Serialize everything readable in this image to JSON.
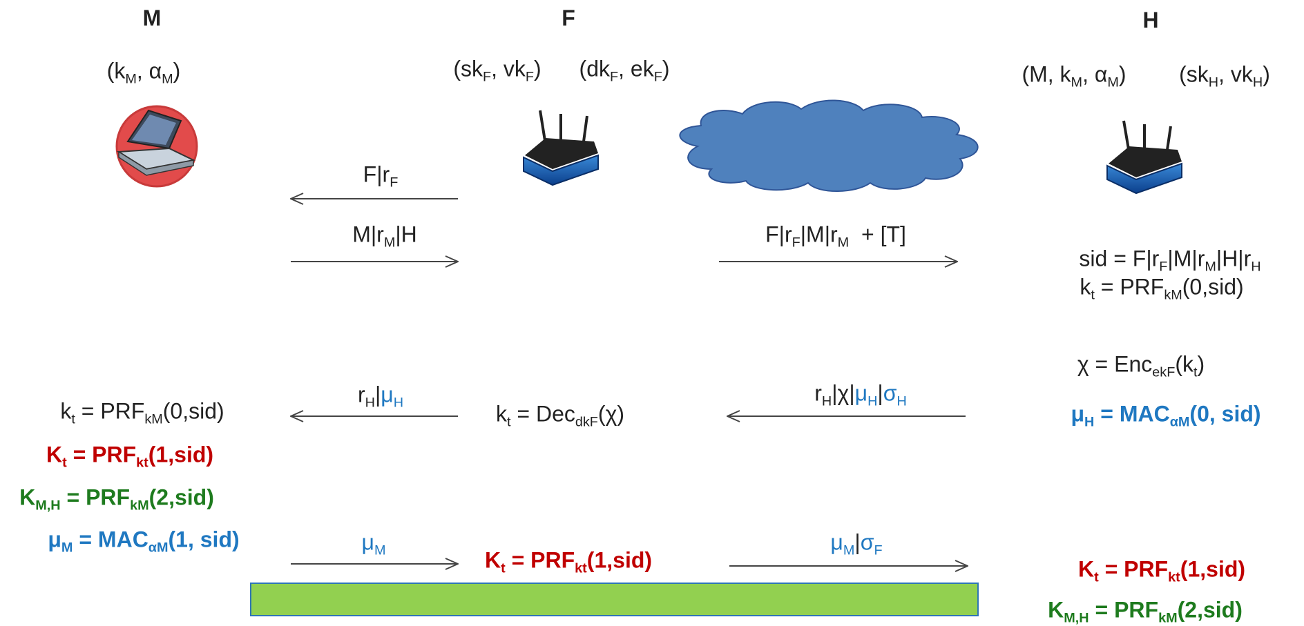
{
  "labels": [
    {
      "bold": true,
      "runs": [
        {
          "text": "M"
        }
      ]
    },
    {
      "bold": true,
      "runs": [
        {
          "text": "F"
        }
      ]
    },
    {
      "bold": true,
      "runs": [
        {
          "text": "H"
        }
      ]
    },
    {
      "runs": [
        {
          "text": "(k"
        },
        {
          "text": "M",
          "sub": true
        },
        {
          "text": ", α"
        },
        {
          "text": "M",
          "sub": true
        },
        {
          "text": ")"
        }
      ]
    },
    {
      "runs": [
        {
          "text": "(sk"
        },
        {
          "text": "F",
          "sub": true
        },
        {
          "text": ", vk"
        },
        {
          "text": "F",
          "sub": true
        },
        {
          "text": ")"
        }
      ]
    },
    {
      "runs": [
        {
          "text": "(dk"
        },
        {
          "text": "F",
          "sub": true
        },
        {
          "text": ", ek"
        },
        {
          "text": "F",
          "sub": true
        },
        {
          "text": ")"
        }
      ]
    },
    {
      "runs": [
        {
          "text": "(M, k"
        },
        {
          "text": "M",
          "sub": true
        },
        {
          "text": ", α"
        },
        {
          "text": "M",
          "sub": true
        },
        {
          "text": ")"
        }
      ]
    },
    {
      "runs": [
        {
          "text": "(sk"
        },
        {
          "text": "H",
          "sub": true
        },
        {
          "text": ", vk"
        },
        {
          "text": "H",
          "sub": true
        },
        {
          "text": ")"
        }
      ]
    },
    {
      "runs": [
        {
          "text": "F|r"
        },
        {
          "text": "F",
          "sub": true
        }
      ]
    },
    {
      "runs": [
        {
          "text": "M|r"
        },
        {
          "text": "M",
          "sub": true
        },
        {
          "text": "|H"
        }
      ]
    },
    {
      "runs": [
        {
          "text": "F|r"
        },
        {
          "text": "F",
          "sub": true
        },
        {
          "text": "|M|r"
        },
        {
          "text": "M",
          "sub": true
        },
        {
          "text": "  + [T]"
        }
      ]
    },
    {
      "runs": [
        {
          "text": "sid = F|r"
        },
        {
          "text": "F",
          "sub": true
        },
        {
          "text": "|M|r"
        },
        {
          "text": "M",
          "sub": true
        },
        {
          "text": "|H|r"
        },
        {
          "text": "H",
          "sub": true
        }
      ]
    },
    {
      "runs": [
        {
          "text": "k"
        },
        {
          "text": "t",
          "sub": true
        },
        {
          "text": " = PRF"
        },
        {
          "text": "kM",
          "sub": true
        },
        {
          "text": "(0,sid)"
        }
      ]
    },
    {
      "runs": [
        {
          "text": "χ = Enc"
        },
        {
          "text": "ekF",
          "sub": true
        },
        {
          "text": "(k"
        },
        {
          "text": "t",
          "sub": true
        },
        {
          "text": ")"
        }
      ]
    },
    {
      "bold": true,
      "color": "#1f78c1",
      "runs": [
        {
          "text": "μ"
        },
        {
          "text": "H",
          "sub": true
        },
        {
          "text": " = MAC"
        },
        {
          "text": "αM",
          "sub": true
        },
        {
          "text": "(0, sid)"
        }
      ]
    },
    {
      "runs": [
        {
          "text": "r"
        },
        {
          "text": "H",
          "sub": true
        },
        {
          "text": "|"
        },
        {
          "text": "μ",
          "color": "#1f78c1"
        },
        {
          "text": "H",
          "sub": true,
          "color": "#1f78c1"
        }
      ]
    },
    {
      "runs": [
        {
          "text": "k"
        },
        {
          "text": "t",
          "sub": true
        },
        {
          "text": " = Dec"
        },
        {
          "text": "dkF",
          "sub": true
        },
        {
          "text": "(χ)"
        }
      ]
    },
    {
      "runs": [
        {
          "text": "r"
        },
        {
          "text": "H",
          "sub": true
        },
        {
          "text": "|χ|"
        },
        {
          "text": "μ",
          "color": "#1f78c1"
        },
        {
          "text": "H",
          "sub": true,
          "color": "#1f78c1"
        },
        {
          "text": "|"
        },
        {
          "text": "σ",
          "color": "#1f78c1"
        },
        {
          "text": "H",
          "sub": true,
          "color": "#1f78c1"
        }
      ]
    },
    {
      "runs": [
        {
          "text": "k"
        },
        {
          "text": "t",
          "sub": true
        },
        {
          "text": " = PRF"
        },
        {
          "text": "kM",
          "sub": true
        },
        {
          "text": "(0,sid)"
        }
      ]
    },
    {
      "bold": true,
      "color": "#c00000",
      "runs": [
        {
          "text": "K"
        },
        {
          "text": "t",
          "sub": true
        },
        {
          "text": " = PRF"
        },
        {
          "text": "kt",
          "sub": true
        },
        {
          "text": "(1,sid)"
        }
      ]
    },
    {
      "bold": true,
      "color": "#1e7b1e",
      "runs": [
        {
          "text": "K"
        },
        {
          "text": "M,H",
          "sub": true
        },
        {
          "text": " = PRF"
        },
        {
          "text": "kM",
          "sub": true
        },
        {
          "text": "(2,sid)"
        }
      ]
    },
    {
      "bold": true,
      "color": "#1f78c1",
      "runs": [
        {
          "text": "μ"
        },
        {
          "text": "M",
          "sub": true
        },
        {
          "text": " = MAC"
        },
        {
          "text": "αM",
          "sub": true
        },
        {
          "text": "(1, sid)"
        }
      ]
    },
    {
      "color": "#1f78c1",
      "runs": [
        {
          "text": "μ"
        },
        {
          "text": "M",
          "sub": true
        }
      ]
    },
    {
      "bold": true,
      "color": "#c00000",
      "runs": [
        {
          "text": "K"
        },
        {
          "text": "t",
          "sub": true
        },
        {
          "text": " = PRF"
        },
        {
          "text": "kt",
          "sub": true
        },
        {
          "text": "(1,sid)"
        }
      ]
    },
    {
      "color": "#1f78c1",
      "runs": [
        {
          "text": "μ"
        },
        {
          "text": "M",
          "sub": true
        },
        {
          "text": "|",
          "color": "#222"
        },
        {
          "text": "σ"
        },
        {
          "text": "F",
          "sub": true
        }
      ]
    },
    {
      "bold": true,
      "color": "#c00000",
      "runs": [
        {
          "text": "K"
        },
        {
          "text": "t",
          "sub": true
        },
        {
          "text": " = PRF"
        },
        {
          "text": "kt",
          "sub": true
        },
        {
          "text": "(1,sid)"
        }
      ]
    },
    {
      "bold": true,
      "color": "#1e7b1e",
      "runs": [
        {
          "text": "K"
        },
        {
          "text": "M,H",
          "sub": true
        },
        {
          "text": " = PRF"
        },
        {
          "text": "kM",
          "sub": true
        },
        {
          "text": "(2,sid)"
        }
      ]
    }
  ]
}
